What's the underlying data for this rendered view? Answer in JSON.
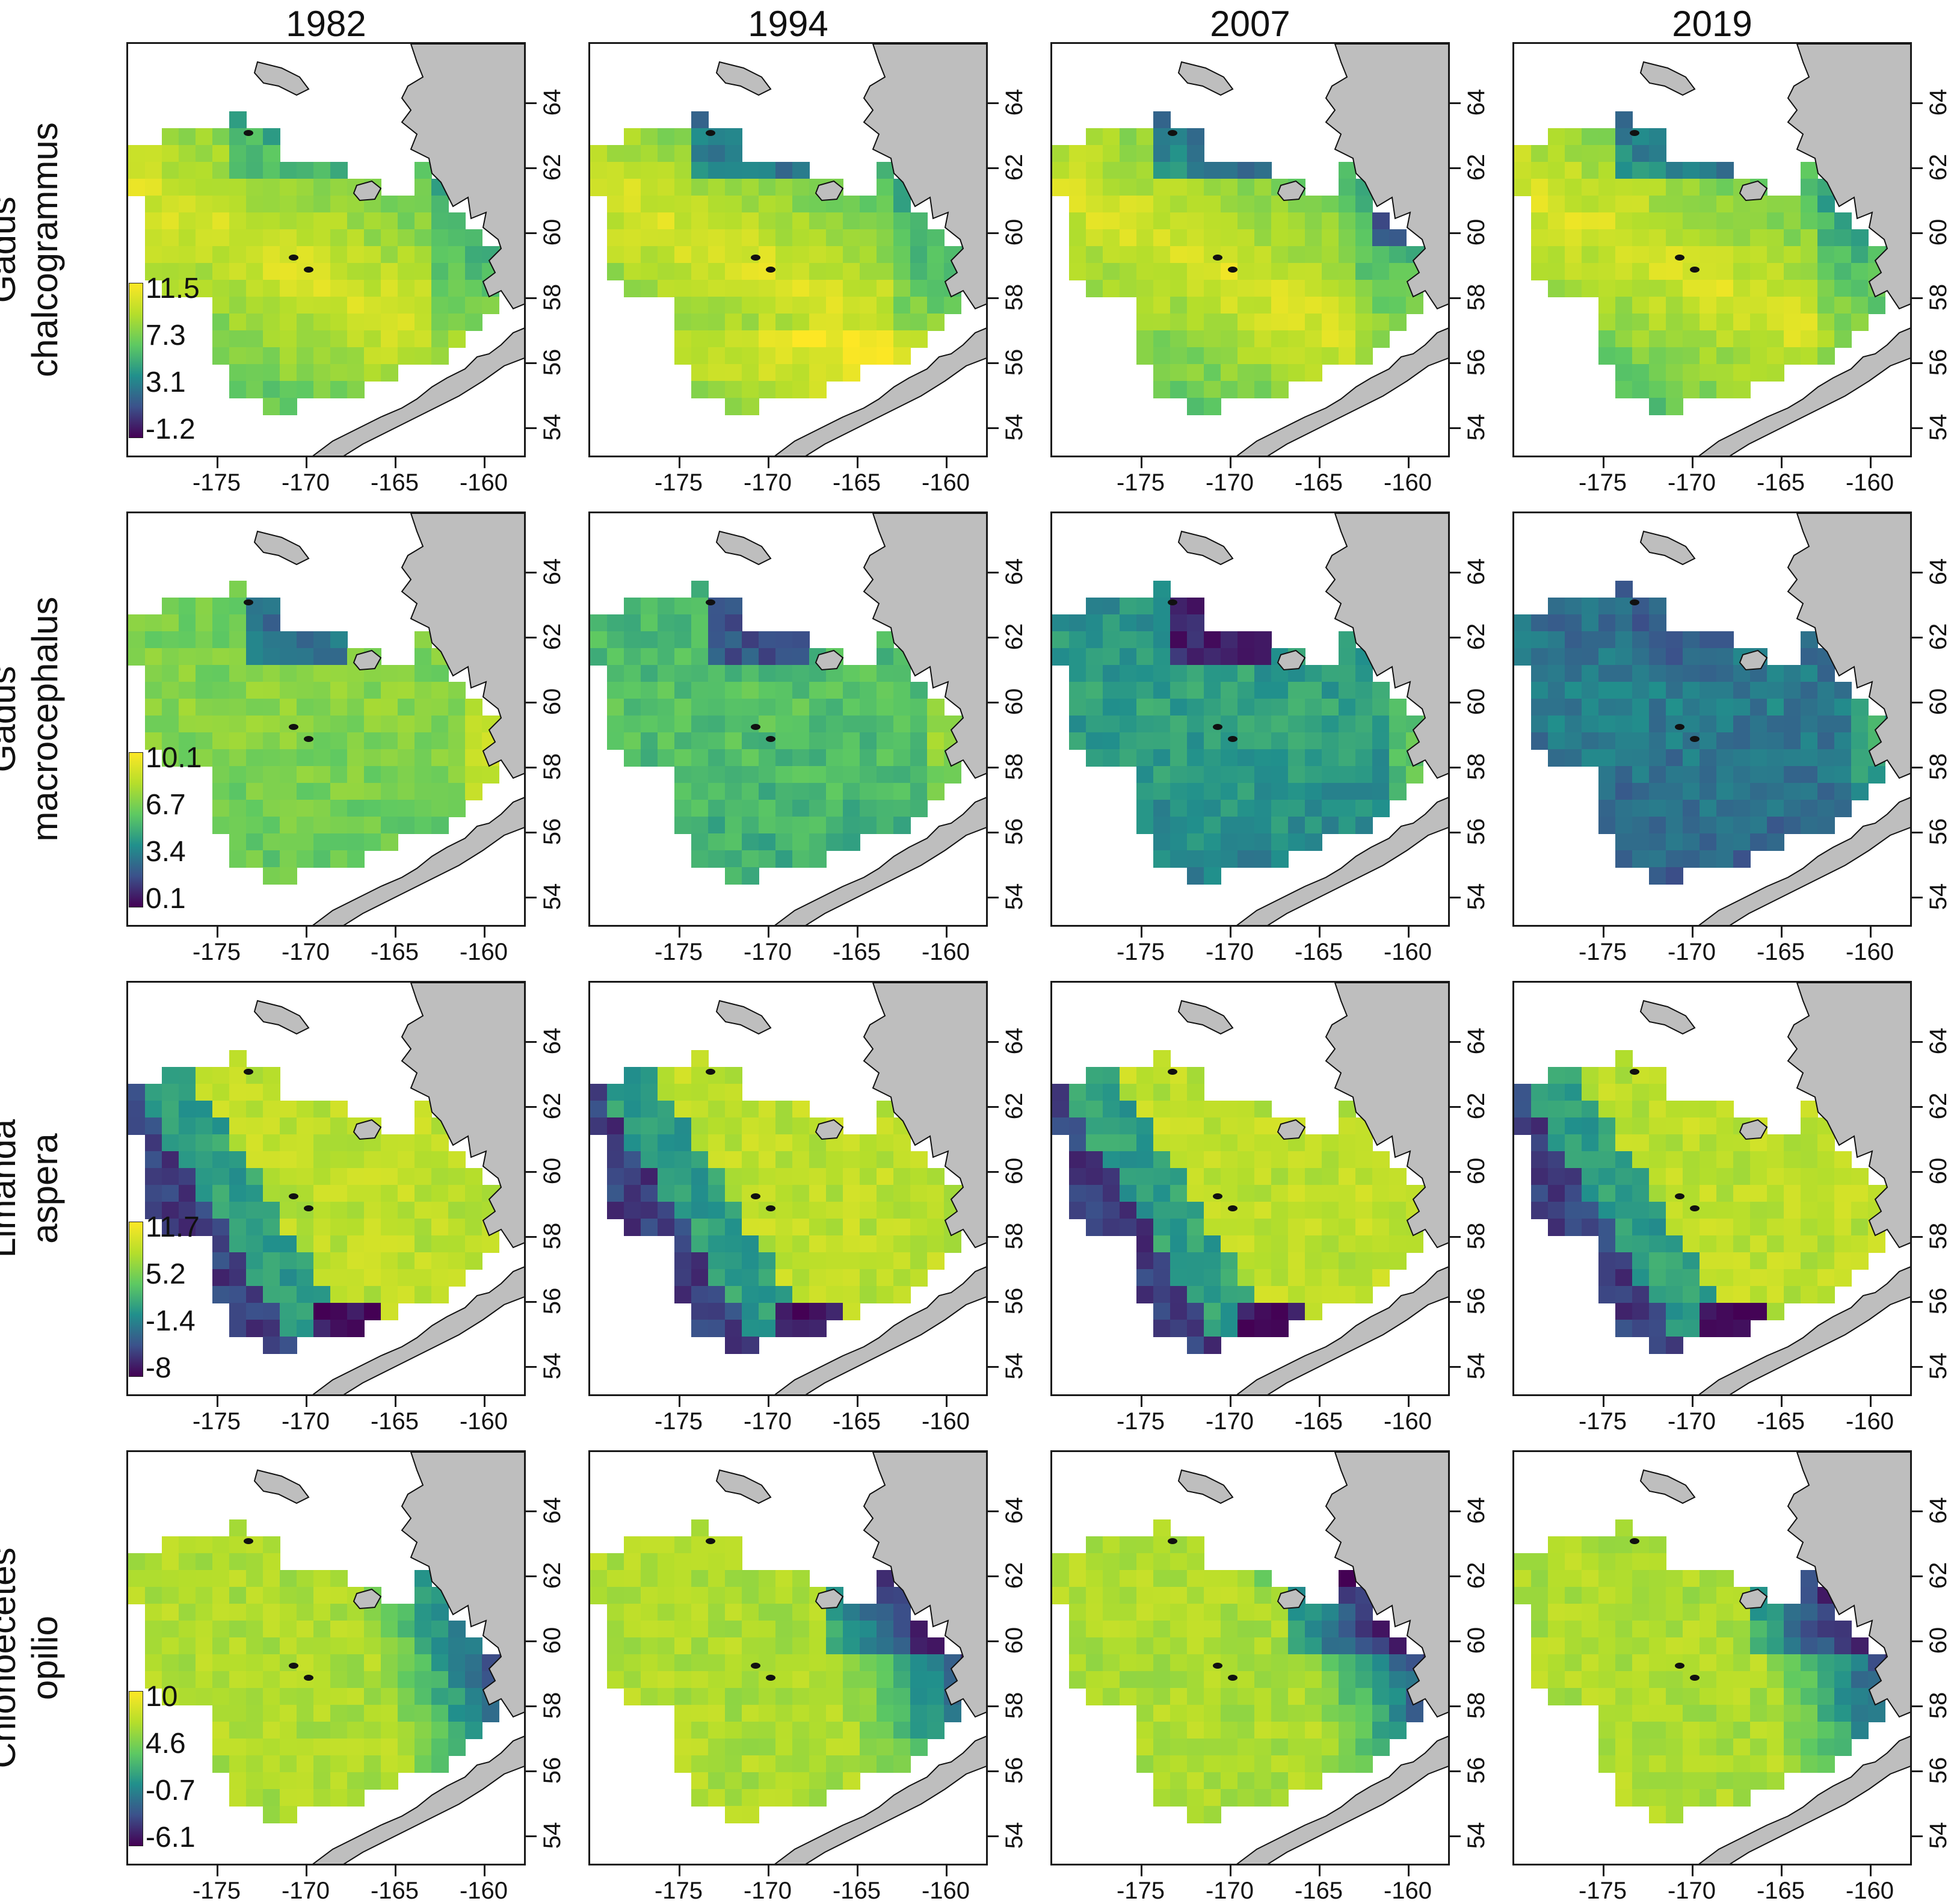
{
  "years": [
    "1982",
    "1994",
    "2007",
    "2019"
  ],
  "species": [
    {
      "line1": "Gadus",
      "line2": "chalcogrammus",
      "legend": [
        "11.5",
        "7.3",
        "3.1",
        "-1.2"
      ]
    },
    {
      "line1": "Gadus",
      "line2": "macrocephalus",
      "legend": [
        "10.1",
        "6.7",
        "3.4",
        "0.1"
      ]
    },
    {
      "line1": "Limanda",
      "line2": "aspera",
      "legend": [
        "11.7",
        "5.2",
        "-1.4",
        "-8"
      ]
    },
    {
      "line1": "Chionoecetes",
      "line2": "opilio",
      "legend": [
        "10",
        "4.6",
        "-0.7",
        "-6.1"
      ]
    }
  ],
  "axes": {
    "x_ticks": [
      "-175",
      "-170",
      "-165",
      "-160"
    ],
    "y_ticks": [
      "54",
      "56",
      "58",
      "60",
      "62",
      "64"
    ]
  },
  "colors": {
    "land": "#bebebe",
    "palette": [
      "#440154",
      "#3b528b",
      "#21908c",
      "#5ec962",
      "#b5de2b",
      "#fde725"
    ]
  }
}
